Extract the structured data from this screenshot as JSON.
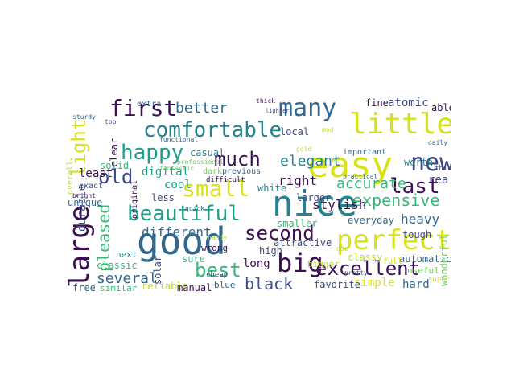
{
  "palette": {
    "deep_purple": "#3b0f52",
    "indigo": "#3e4a89",
    "blue": "#31688e",
    "teal": "#26828e",
    "green": "#1f9e89",
    "light_green": "#35b779",
    "lime": "#6ece58",
    "yellow_green": "#b5de2b",
    "yellow": "#d8e219",
    "bright_yellow": "#e2e418"
  },
  "words": [
    {
      "text": "good",
      "color": "#31688e"
    },
    {
      "text": "nice",
      "color": "#26828e"
    },
    {
      "text": "easy",
      "color": "#d8e219"
    },
    {
      "text": "little",
      "color": "#d8e219"
    },
    {
      "text": "large",
      "color": "#3b0f52"
    },
    {
      "text": "perfect",
      "color": "#d8e219"
    },
    {
      "text": "comfortable",
      "color": "#26828e"
    },
    {
      "text": "first",
      "color": "#3b0f52"
    },
    {
      "text": "many",
      "color": "#31688e"
    },
    {
      "text": "big",
      "color": "#3b0f52"
    },
    {
      "text": "beautiful",
      "color": "#1f9e89"
    },
    {
      "text": "small",
      "color": "#d8e219"
    },
    {
      "text": "excellent",
      "color": "#3b0f52"
    },
    {
      "text": "happy",
      "color": "#1f9e89"
    },
    {
      "text": "new",
      "color": "#3e4a89"
    },
    {
      "text": "last",
      "color": "#3b0f52"
    },
    {
      "text": "much",
      "color": "#3b0f52"
    },
    {
      "text": "second",
      "color": "#3b0f52"
    },
    {
      "text": "light",
      "color": "#d8e219"
    },
    {
      "text": "best",
      "color": "#35b779"
    },
    {
      "text": "old",
      "color": "#3e4a89"
    },
    {
      "text": "expensive",
      "color": "#35b779"
    },
    {
      "text": "black",
      "color": "#3e4a89"
    },
    {
      "text": "pleased",
      "color": "#35b779"
    },
    {
      "text": "accurate",
      "color": "#35b779"
    },
    {
      "text": "better",
      "color": "#31688e"
    },
    {
      "text": "elegant",
      "color": "#26828e"
    },
    {
      "text": "several",
      "color": "#31688e"
    },
    {
      "text": "different",
      "color": "#31688e"
    },
    {
      "text": "durable",
      "color": "#3e4a89"
    },
    {
      "text": "heavy",
      "color": "#31688e"
    },
    {
      "text": "stylish",
      "color": "#3b0f52"
    },
    {
      "text": "right",
      "color": "#3b0f52"
    },
    {
      "text": "digital",
      "color": "#1f9e89"
    },
    {
      "text": "cool",
      "color": "#1f9e89"
    },
    {
      "text": "atomic",
      "color": "#3e4a89"
    },
    {
      "text": "fine",
      "color": "#3b0f52"
    },
    {
      "text": "able",
      "color": "#3b0f52"
    },
    {
      "text": "real",
      "color": "#3e4a89"
    },
    {
      "text": "everyday",
      "color": "#31688e"
    },
    {
      "text": "less",
      "color": "#3e4a89"
    },
    {
      "text": "simple",
      "color": "#d8e219"
    },
    {
      "text": "hard",
      "color": "#31688e"
    },
    {
      "text": "attractive",
      "color": "#3e4a89"
    },
    {
      "text": "automatic",
      "color": "#31688e"
    },
    {
      "text": "long",
      "color": "#3b0f52"
    },
    {
      "text": "high",
      "color": "#3e4a89"
    },
    {
      "text": "classy",
      "color": "#b5de2b"
    },
    {
      "text": "bigger",
      "color": "#b5de2b"
    },
    {
      "text": "useful",
      "color": "#6ece58"
    },
    {
      "text": "wonderful",
      "color": "#6ece58"
    },
    {
      "text": "tough",
      "color": "#3e4a89"
    },
    {
      "text": "smaller",
      "color": "#35b779"
    },
    {
      "text": "white",
      "color": "#26828e"
    },
    {
      "text": "larger",
      "color": "#3e4a89"
    },
    {
      "text": "previous",
      "color": "#31688e"
    },
    {
      "text": "dark",
      "color": "#6ece58"
    },
    {
      "text": "solid",
      "color": "#35b779"
    },
    {
      "text": "casual",
      "color": "#26828e"
    },
    {
      "text": "local",
      "color": "#3e4a89"
    },
    {
      "text": "clear",
      "color": "#3b0f52"
    },
    {
      "text": "least",
      "color": "#3b0f52"
    },
    {
      "text": "unique",
      "color": "#31688e"
    },
    {
      "text": "classic",
      "color": "#35b779"
    },
    {
      "text": "next",
      "color": "#26828e"
    },
    {
      "text": "free",
      "color": "#31688e"
    },
    {
      "text": "similar",
      "color": "#35b779"
    },
    {
      "text": "reliable",
      "color": "#b5de2b"
    },
    {
      "text": "manual",
      "color": "#3b0f52"
    },
    {
      "text": "blue",
      "color": "#31688e"
    },
    {
      "text": "favorite",
      "color": "#3e4a89"
    },
    {
      "text": "sure",
      "color": "#35b779"
    },
    {
      "text": "wrong",
      "color": "#3b0f52"
    },
    {
      "text": "solar",
      "color": "#3e4a89"
    },
    {
      "text": "worth",
      "color": "#26828e"
    },
    {
      "text": "important",
      "color": "#31688e"
    },
    {
      "text": "full",
      "color": "#d8e219"
    },
    {
      "text": "extra",
      "color": "#31688e"
    },
    {
      "text": "overall",
      "color": "#b5de2b"
    },
    {
      "text": "exact",
      "color": "#3e4a89"
    },
    {
      "text": "bright",
      "color": "#3b0f52"
    },
    {
      "text": "fantastic",
      "color": "#6ece58"
    },
    {
      "text": "functional",
      "color": "#31688e"
    },
    {
      "text": "original",
      "color": "#3b0f52"
    },
    {
      "text": "handy",
      "color": "#b5de2b"
    },
    {
      "text": "quick",
      "color": "#31688e"
    },
    {
      "text": "difficult",
      "color": "#3b0f52"
    },
    {
      "text": "cheap",
      "color": "#3e4a89"
    },
    {
      "text": "mod",
      "color": "#b5de2b"
    },
    {
      "text": "pretty",
      "color": "#31688e"
    },
    {
      "text": "due",
      "color": "#b5de2b"
    },
    {
      "text": "super",
      "color": "#d8e219"
    },
    {
      "text": "thin",
      "color": "#3e4a89"
    },
    {
      "text": "daily",
      "color": "#31688e"
    },
    {
      "text": "thick",
      "color": "#3b0f52"
    },
    {
      "text": "top",
      "color": "#3e4a89"
    },
    {
      "text": "sturdy",
      "color": "#31688e"
    },
    {
      "text": "professional",
      "color": "#6ece58"
    },
    {
      "text": "gold",
      "color": "#b5de2b"
    },
    {
      "text": "lighter",
      "color": "#3e4a89"
    },
    {
      "text": "practical",
      "color": "#31688e"
    }
  ]
}
